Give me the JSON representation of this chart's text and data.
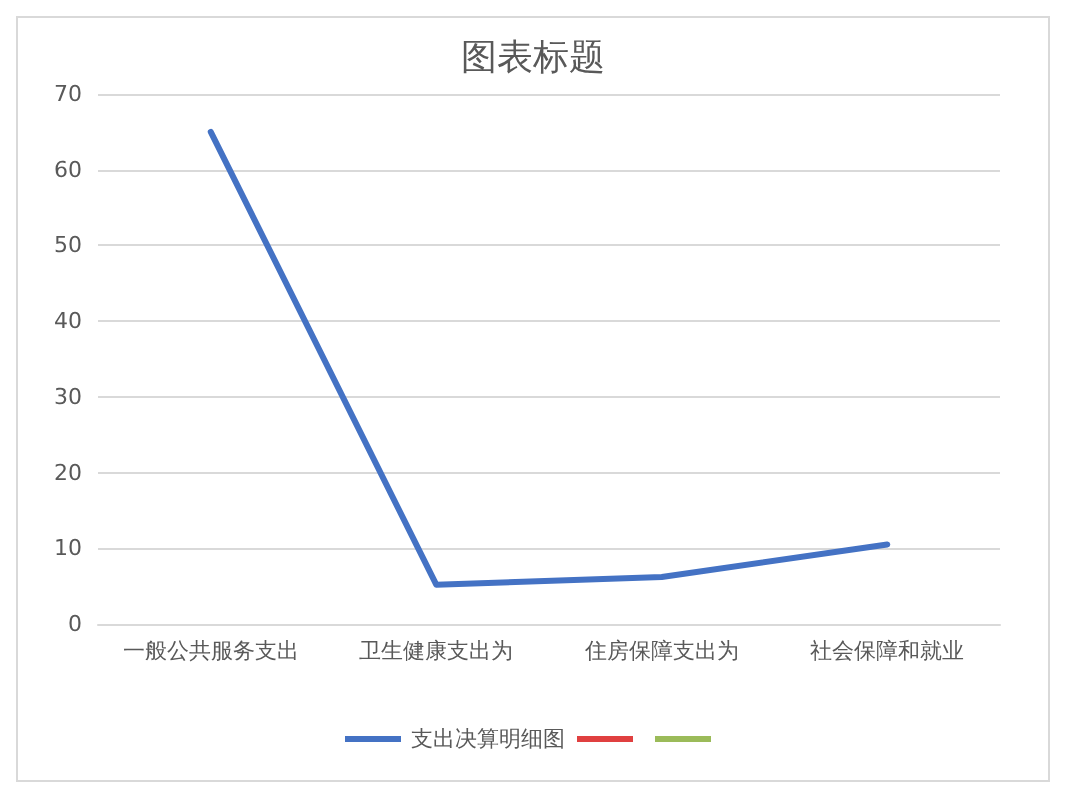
{
  "chart_data": {
    "type": "line",
    "title": "图表标题",
    "categories": [
      "一般公共服务支出",
      "卫生健康支出为",
      "住房保障支出为",
      "社会保障和就业"
    ],
    "series": [
      {
        "name": "支出决算明细图",
        "color": "#4472c4",
        "values": [
          65,
          5.2,
          6.2,
          10.5
        ]
      },
      {
        "color": "#e04040",
        "values": [
          null,
          null,
          null,
          null
        ]
      },
      {
        "color": "#9bbb59",
        "values": [
          null,
          null,
          null,
          null
        ]
      }
    ],
    "ylim": [
      0,
      70
    ],
    "yticks": [
      0,
      10,
      20,
      30,
      40,
      50,
      60,
      70
    ],
    "grid": "y",
    "legend": "bottom",
    "marker": "none",
    "line_style": "solid"
  }
}
